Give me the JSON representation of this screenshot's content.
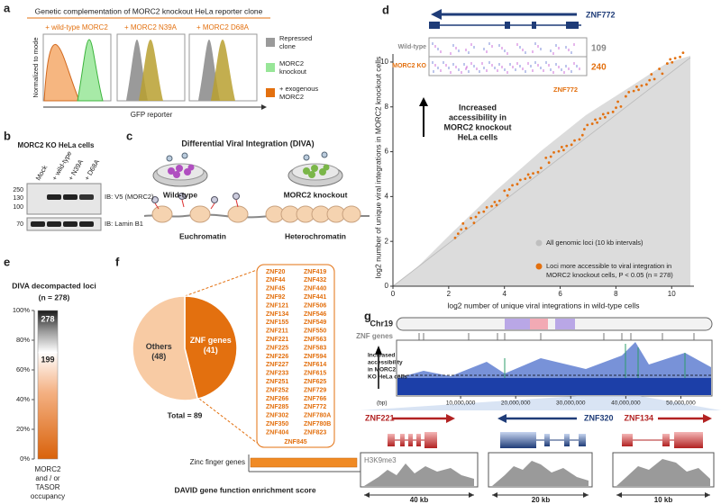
{
  "panel_labels": [
    "a",
    "b",
    "c",
    "d",
    "e",
    "f",
    "g"
  ],
  "a": {
    "title": "Genetic complementation of MORC2 knockout HeLa reporter clone",
    "conditions": [
      "+ wild-type MORC2",
      "+ MORC2 N39A",
      "+ MORC2 D68A"
    ],
    "legend": [
      [
        "Repressed",
        "clone"
      ],
      [
        "MORC2",
        "knockout"
      ],
      [
        "+ exogenous",
        "MORC2"
      ]
    ],
    "y_label": "Normalized to mode",
    "x_label": "GFP reporter"
  },
  "b": {
    "title": "MORC2 KO HeLa cells",
    "lanes": [
      "Mock",
      "+ wild-type",
      "+ N39A",
      "+ D68A"
    ],
    "markers": [
      "250",
      "130",
      "100",
      "70"
    ],
    "blots": [
      "IB: V5 (MORC2)",
      "IB: Lamin B1"
    ]
  },
  "c": {
    "title": "Differential Viral Integration (DIVA)",
    "dishes": [
      "Wild-type",
      "MORC2 knockout"
    ],
    "chromatin": [
      "Euchromatin",
      "Heterochromatin"
    ]
  },
  "d": {
    "gene": "ZNF772",
    "inset_rows": [
      "Wild-type",
      "MORC2 KO"
    ],
    "inset_counts": [
      109,
      240
    ],
    "callout": "ZNF772",
    "annotation": [
      "Increased",
      "accessibility in",
      "MORC2 knockout",
      "HeLa cells"
    ],
    "y_label": "log2 number of unique viral integrations in MORC2 knockout cells",
    "x_label": "log2 number of unique viral integrations in wild-type cells",
    "xticks": [
      0,
      2,
      4,
      6,
      8,
      10
    ],
    "yticks": [
      0,
      2,
      4,
      6,
      8,
      10
    ],
    "xlim": [
      0,
      10.8
    ],
    "ylim": [
      0,
      10.6
    ],
    "legend": {
      "all": "All genomic loci (10 kb intervals)",
      "significant": [
        "Loci more accessible to viral integration  in",
        "MORC2  knockout cells, P < 0.05 (n = 278)"
      ]
    }
  },
  "e": {
    "title": "DIVA  decompacted loci",
    "subtitle": "(n = 278)",
    "values": [
      199,
      278
    ],
    "yticks": [
      {
        "value": 0,
        "label": "0%"
      },
      {
        "value": 20,
        "label": "20%"
      },
      {
        "value": 40,
        "label": "40%"
      },
      {
        "value": 60,
        "label": "60%"
      },
      {
        "value": 80,
        "label": "80%"
      },
      {
        "value": 100,
        "label": "100%"
      }
    ],
    "footer": [
      "MORC2",
      "and / or",
      "TASOR",
      "occupancy"
    ]
  },
  "f": {
    "pie": {
      "labels": [
        "Others",
        "ZNF genes"
      ],
      "values": [
        48,
        41
      ],
      "value_labels": [
        "(48)",
        "(41)"
      ],
      "colors": [
        "#f8cba4",
        "#e3700f"
      ]
    },
    "total": "Total = 89",
    "genes": [
      [
        "ZNF20",
        "ZNF44",
        "ZNF45",
        "ZNF92",
        "ZNF121",
        "ZNF134",
        "ZNF155",
        "ZNF211",
        "ZNF221",
        "ZNF225",
        "ZNF226",
        "ZNF227",
        "ZNF233",
        "ZNF251",
        "ZNF252",
        "ZNF266",
        "ZNF285",
        "ZNF302",
        "ZNF350",
        "ZNF404"
      ],
      [
        "ZNF419",
        "ZNF432",
        "ZNF440",
        "ZNF441",
        "ZNF506",
        "ZNF546",
        "ZNF549",
        "ZNF550",
        "ZNF563",
        "ZNF583",
        "ZNF594",
        "ZNF614",
        "ZNF615",
        "ZNF625",
        "ZNF729",
        "ZNF766",
        "ZNF772",
        "ZNF780A",
        "ZNF780B",
        "ZNF823"
      ],
      [
        "ZNF845"
      ]
    ],
    "enrichment_category": "Zinc finger genes",
    "enrichment_label": "DAVID  gene function enrichment score"
  },
  "g": {
    "chromosome": "Chr19",
    "track": "ZNF genes",
    "coverage_label": [
      "Increased",
      "accessibility",
      "in MORC2",
      "KO HeLa cells"
    ],
    "unit": "(bp)",
    "xticks": [
      {
        "value": 10000000,
        "label": "10,000,000"
      },
      {
        "value": 20000000,
        "label": "20,000,000"
      },
      {
        "value": 30000000,
        "label": "30,000,000"
      },
      {
        "value": 40000000,
        "label": "40,000,000"
      },
      {
        "value": 50000000,
        "label": "50,000,000"
      }
    ],
    "xlim": [
      0,
      55000000
    ],
    "genes": [
      "ZNF221",
      "ZNF320",
      "ZNF134"
    ],
    "mark": "H3K9me3",
    "scales": [
      "40 kb",
      "20 kb",
      "10 kb"
    ]
  }
}
